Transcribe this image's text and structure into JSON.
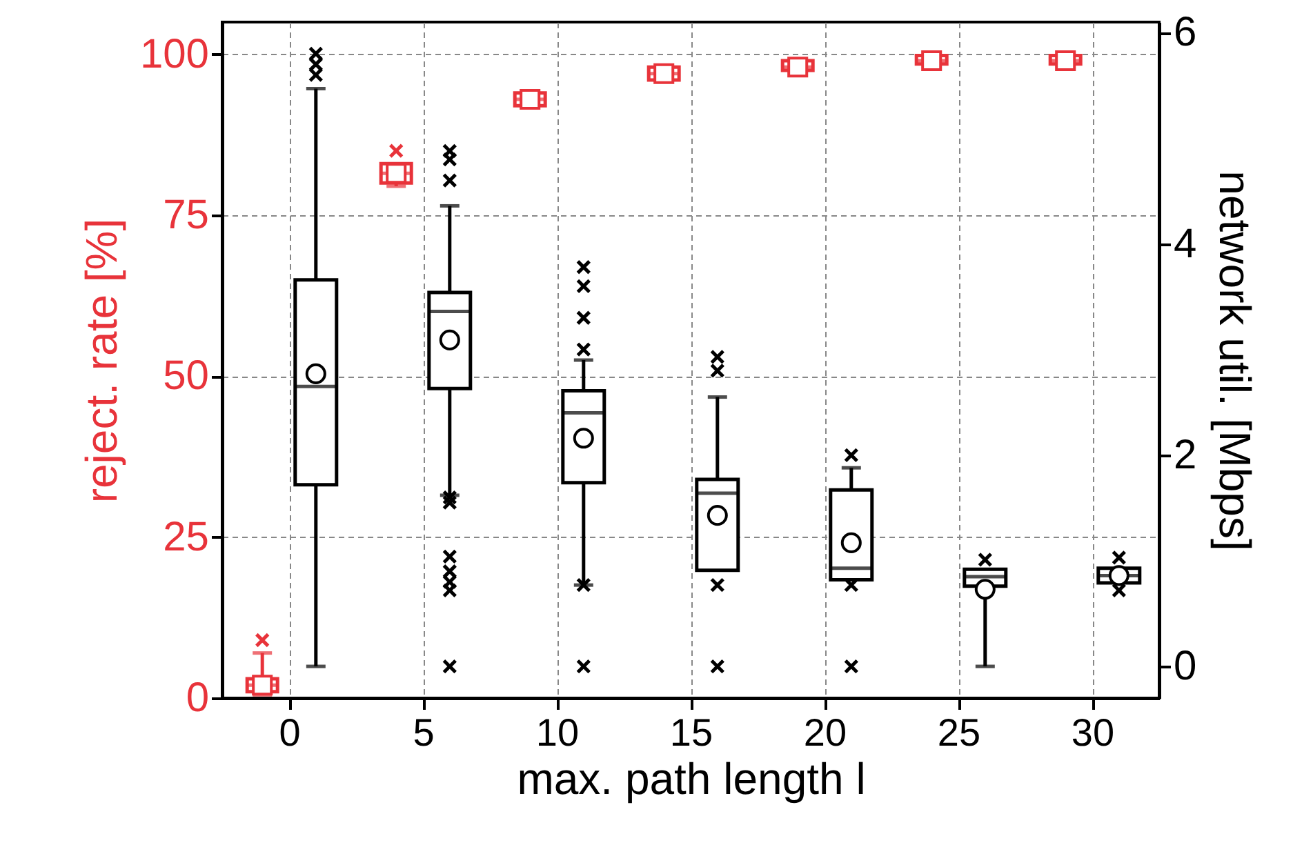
{
  "chart_data": {
    "type": "box",
    "xlabel": "max. path length l",
    "ylabel": "reject. rate [%]",
    "y2label": "network util. [Mbps]",
    "xlim": [
      -2.5,
      32.5
    ],
    "xticks": [
      0,
      5,
      10,
      15,
      20,
      25,
      30
    ],
    "ylim": [
      0,
      105
    ],
    "yticks": [
      0,
      25,
      50,
      75,
      100
    ],
    "y2lim": [
      -0.3,
      6.1
    ],
    "y2ticks": [
      0,
      2,
      4,
      6
    ],
    "grid": true,
    "series": [
      {
        "color": "#e8333a",
        "axis": "y",
        "marker": "square",
        "x": [
          -1,
          4,
          9,
          14,
          19,
          24,
          29
        ],
        "boxes": [
          {
            "low": 0.5,
            "q1": 1,
            "median": 2,
            "q3": 3,
            "high": 7,
            "mean": 2,
            "outliers": [
              9
            ]
          },
          {
            "low": 79.5,
            "q1": 80,
            "median": 81.5,
            "q3": 83,
            "high": 83,
            "mean": 81.5,
            "outliers": [
              85
            ]
          },
          {
            "low": 92,
            "q1": 92,
            "median": 93,
            "q3": 94,
            "high": 94,
            "mean": 93
          },
          {
            "low": 96,
            "q1": 96,
            "median": 97,
            "q3": 98,
            "high": 98,
            "mean": 97
          },
          {
            "low": 97.5,
            "q1": 97.5,
            "median": 98,
            "q3": 99,
            "high": 99,
            "mean": 98
          },
          {
            "low": 98.5,
            "q1": 98.5,
            "median": 99,
            "q3": 99.8,
            "high": 99.8,
            "mean": 99
          },
          {
            "low": 98.5,
            "q1": 98.5,
            "median": 99,
            "q3": 99.8,
            "high": 99.8,
            "mean": 99
          }
        ]
      },
      {
        "color": "#000000",
        "axis": "y2",
        "marker": "circle",
        "x": [
          1,
          6,
          11,
          16,
          21,
          26,
          31
        ],
        "boxes": [
          {
            "low": 0,
            "q1": 1.72,
            "median": 2.65,
            "q3": 3.66,
            "high": 5.47,
            "mean": 2.77,
            "outliers": [
              5.6,
              5.7,
              5.8
            ]
          },
          {
            "low": 1.62,
            "q1": 2.63,
            "median": 3.36,
            "q3": 3.54,
            "high": 4.36,
            "mean": 3.09,
            "outliers": [
              0,
              0.72,
              0.8,
              0.9,
              1.04,
              1.55,
              1.6,
              4.6,
              4.8,
              4.88
            ]
          },
          {
            "low": 0.77,
            "q1": 1.74,
            "median": 2.4,
            "q3": 2.61,
            "high": 2.9,
            "mean": 2.16,
            "outliers": [
              0,
              0.77,
              3.0,
              3.3,
              3.6,
              3.78
            ]
          },
          {
            "low": 0.91,
            "q1": 0.91,
            "median": 1.64,
            "q3": 1.77,
            "high": 2.55,
            "mean": 1.43,
            "outliers": [
              0,
              0.77,
              2.8,
              2.93
            ]
          },
          {
            "low": 0.82,
            "q1": 0.82,
            "median": 0.93,
            "q3": 1.67,
            "high": 1.88,
            "mean": 1.17,
            "outliers": [
              0,
              0.77,
              2.0
            ]
          },
          {
            "low": 0,
            "q1": 0.76,
            "median": 0.85,
            "q3": 0.92,
            "high": 0.92,
            "mean": 0.73,
            "outliers": [
              1.01
            ]
          },
          {
            "low": 0.79,
            "q1": 0.79,
            "median": 0.86,
            "q3": 0.93,
            "high": 0.93,
            "mean": 0.86,
            "outliers": [
              0.72,
              1.03
            ]
          }
        ]
      }
    ]
  }
}
